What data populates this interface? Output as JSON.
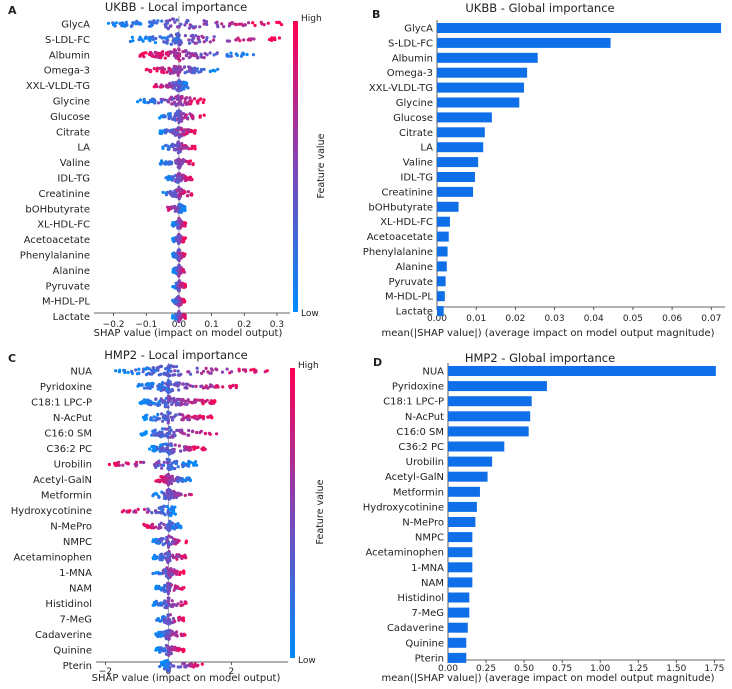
{
  "figure": {
    "colors": {
      "high": "#ff0052",
      "low": "#008bfb",
      "bar": "#0f6fe8",
      "zero_line": "#999999",
      "axis": "#333333"
    },
    "colorbar": {
      "high_label": "High",
      "low_label": "Low",
      "title": "Feature value"
    }
  },
  "chart_data": [
    {
      "id": "A",
      "panel_label": "A",
      "type": "scatter",
      "title": "UKBB - Local importance",
      "xlabel": "SHAP value (impact on model output)",
      "xlim": [
        -0.26,
        0.34
      ],
      "xticks": [
        -0.2,
        -0.1,
        0.0,
        0.1,
        0.2,
        0.3
      ],
      "xtick_labels": [
        "−0.2",
        "−0.1",
        "0.0",
        "0.1",
        "0.2",
        "0.3"
      ],
      "features": [
        "GlycA",
        "S-LDL-FC",
        "Albumin",
        "Omega-3",
        "XXL-VLDL-TG",
        "Glycine",
        "Glucose",
        "Citrate",
        "LA",
        "Valine",
        "IDL-TG",
        "Creatinine",
        "bOHbutyrate",
        "XL-HDL-FC",
        "Acetoacetate",
        "Phenylalanine",
        "Alanine",
        "Pyruvate",
        "M-HDL-PL",
        "Lactate"
      ],
      "spread_lo": [
        -0.22,
        -0.15,
        -0.12,
        -0.1,
        -0.08,
        -0.13,
        -0.06,
        -0.06,
        -0.05,
        -0.06,
        -0.04,
        -0.05,
        -0.04,
        -0.02,
        -0.02,
        -0.02,
        -0.02,
        -0.02,
        -0.02,
        -0.02
      ],
      "spread_hi": [
        0.32,
        0.31,
        0.23,
        0.12,
        0.03,
        0.08,
        0.08,
        0.05,
        0.05,
        0.05,
        0.04,
        0.04,
        0.02,
        0.02,
        0.02,
        0.02,
        0.02,
        0.02,
        0.02,
        0.02
      ],
      "high_positive": [
        true,
        true,
        false,
        false,
        false,
        true,
        true,
        true,
        true,
        true,
        true,
        true,
        false,
        true,
        true,
        true,
        true,
        true,
        true,
        true
      ]
    },
    {
      "id": "B",
      "panel_label": "B",
      "type": "bar",
      "title": "UKBB - Global importance",
      "xlabel": "mean(|SHAP value|) (average impact on model output magnitude)",
      "xlim": [
        0,
        0.0735
      ],
      "xticks": [
        0,
        0.01,
        0.02,
        0.03,
        0.04,
        0.05,
        0.06,
        0.07
      ],
      "xtick_labels": [
        "0.00",
        "0.01",
        "0.02",
        "0.03",
        "0.04",
        "0.05",
        "0.06",
        "0.07"
      ],
      "categories": [
        "GlycA",
        "S-LDL-FC",
        "Albumin",
        "Omega-3",
        "XXL-VLDL-TG",
        "Glycine",
        "Glucose",
        "Citrate",
        "LA",
        "Valine",
        "IDL-TG",
        "Creatinine",
        "bOHbutyrate",
        "XL-HDL-FC",
        "Acetoacetate",
        "Phenylalanine",
        "Alanine",
        "Pyruvate",
        "M-HDL-PL",
        "Lactate"
      ],
      "values": [
        0.0725,
        0.0443,
        0.0257,
        0.023,
        0.0222,
        0.021,
        0.014,
        0.0122,
        0.0118,
        0.0105,
        0.0097,
        0.0092,
        0.0055,
        0.0033,
        0.003,
        0.0027,
        0.0025,
        0.0022,
        0.002,
        0.0017
      ]
    },
    {
      "id": "C",
      "panel_label": "C",
      "type": "scatter",
      "title": "HMP2 - Local importance",
      "xlabel": "SHAP value (impact on model output)",
      "xlim": [
        -2.3,
        3.8
      ],
      "xticks": [
        -2,
        0,
        2
      ],
      "xtick_labels": [
        "−2",
        "0",
        "2"
      ],
      "features": [
        "NUA",
        "Pyridoxine",
        "C18:1 LPC-P",
        "N-AcPut",
        "C16:0 SM",
        "C36:2 PC",
        "Urobilin",
        "Acetyl-GalN",
        "Metformin",
        "Hydroxycotinine",
        "N-MePro",
        "NMPC",
        "Acetaminophen",
        "1-MNA",
        "NAM",
        "Histidinol",
        "7-MeG",
        "Cadaverine",
        "Quinine",
        "Pterin"
      ],
      "spread_lo": [
        -1.8,
        -1.0,
        -0.9,
        -0.8,
        -0.9,
        -0.6,
        -1.9,
        -0.4,
        -0.5,
        -1.5,
        -0.8,
        -0.5,
        -0.5,
        -0.5,
        -0.4,
        -0.5,
        -0.4,
        -0.4,
        -0.4,
        -0.3
      ],
      "spread_hi": [
        3.5,
        2.2,
        1.5,
        1.4,
        1.6,
        1.2,
        0.9,
        0.7,
        0.9,
        0.3,
        0.4,
        0.6,
        0.6,
        0.5,
        0.5,
        0.6,
        0.5,
        0.6,
        0.5,
        1.1
      ],
      "high_positive": [
        true,
        true,
        true,
        true,
        true,
        true,
        false,
        false,
        true,
        false,
        false,
        true,
        true,
        true,
        true,
        true,
        true,
        true,
        true,
        true
      ]
    },
    {
      "id": "D",
      "panel_label": "D",
      "type": "bar",
      "title": "HMP2 - Global importance",
      "xlabel": "mean(|SHAP value|) (average impact on model output magnitude)",
      "xlim": [
        0,
        1.82
      ],
      "xticks": [
        0,
        0.25,
        0.5,
        0.75,
        1.0,
        1.25,
        1.5,
        1.75
      ],
      "xtick_labels": [
        "0.00",
        "0.25",
        "0.50",
        "0.75",
        "1.00",
        "1.25",
        "1.50",
        "1.75"
      ],
      "categories": [
        "NUA",
        "Pyridoxine",
        "C18:1 LPC-P",
        "N-AcPut",
        "C16:0 SM",
        "C36:2 PC",
        "Urobilin",
        "Acetyl-GalN",
        "Metformin",
        "Hydroxycotinine",
        "N-MePro",
        "NMPC",
        "Acetaminophen",
        "1-MNA",
        "NAM",
        "Histidinol",
        "7-MeG",
        "Cadaverine",
        "Quinine",
        "Pterin"
      ],
      "values": [
        1.76,
        0.65,
        0.55,
        0.54,
        0.53,
        0.37,
        0.29,
        0.26,
        0.21,
        0.19,
        0.18,
        0.16,
        0.16,
        0.16,
        0.16,
        0.14,
        0.14,
        0.13,
        0.12,
        0.12
      ]
    }
  ]
}
